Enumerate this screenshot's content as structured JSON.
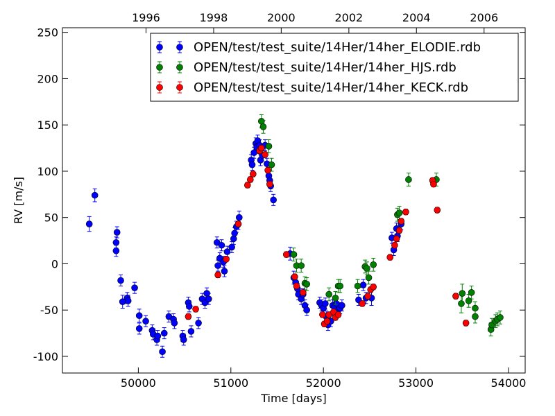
{
  "chart_data": {
    "type": "scatter",
    "title": "",
    "xlabel": "Time [days]",
    "ylabel": "RV [m/s]",
    "xlim": [
      49180,
      54180
    ],
    "ylim": [
      -118,
      255
    ],
    "x_ticks": [
      50000,
      51000,
      52000,
      53000,
      54000
    ],
    "y_ticks": [
      -100,
      -50,
      0,
      50,
      100,
      150,
      200,
      250
    ],
    "top_axis": {
      "ticks": [
        1996,
        1998,
        2000,
        2002,
        2004,
        2006
      ],
      "tick_positions_days": [
        50083,
        50814,
        51544,
        52275,
        53005,
        53736
      ]
    },
    "grid": false,
    "legend": {
      "position": "top-right"
    },
    "series": [
      {
        "name": "OPEN/test/test_suite/14Her/14her_ELODIE.rdb",
        "color": "#0000ff",
        "marker": "circle",
        "errorbars": true,
        "points": [
          [
            49470,
            43,
            8
          ],
          [
            49530,
            74,
            7
          ],
          [
            49760,
            14,
            6
          ],
          [
            49760,
            23,
            6
          ],
          [
            49770,
            34,
            6
          ],
          [
            49810,
            -18,
            6
          ],
          [
            49830,
            -41,
            7
          ],
          [
            49880,
            -37,
            6
          ],
          [
            49890,
            -40,
            6
          ],
          [
            49960,
            -26,
            6
          ],
          [
            50010,
            -56,
            7
          ],
          [
            50010,
            -70,
            6
          ],
          [
            50080,
            -62,
            6
          ],
          [
            50150,
            -72,
            6
          ],
          [
            50160,
            -76,
            6
          ],
          [
            50200,
            -82,
            6
          ],
          [
            50210,
            -78,
            6
          ],
          [
            50260,
            -95,
            6
          ],
          [
            50280,
            -75,
            6
          ],
          [
            50330,
            -57,
            6
          ],
          [
            50380,
            -60,
            6
          ],
          [
            50390,
            -64,
            6
          ],
          [
            50480,
            -78,
            6
          ],
          [
            50490,
            -82,
            6
          ],
          [
            50540,
            -42,
            6
          ],
          [
            50550,
            -46,
            6
          ],
          [
            50570,
            -73,
            6
          ],
          [
            50650,
            -64,
            6
          ],
          [
            50690,
            -38,
            6
          ],
          [
            50720,
            -42,
            6
          ],
          [
            50740,
            -32,
            6
          ],
          [
            50760,
            -38,
            6
          ],
          [
            50850,
            23,
            6
          ],
          [
            50860,
            -2,
            6
          ],
          [
            50880,
            6,
            6
          ],
          [
            50900,
            20,
            6
          ],
          [
            50920,
            2,
            6
          ],
          [
            50930,
            -8,
            6
          ],
          [
            50960,
            13,
            6
          ],
          [
            51010,
            18,
            6
          ],
          [
            51030,
            27,
            6
          ],
          [
            51040,
            33,
            6
          ],
          [
            51060,
            40,
            6
          ],
          [
            51080,
            43,
            6
          ],
          [
            51090,
            50,
            7
          ],
          [
            51220,
            112,
            6
          ],
          [
            51230,
            107,
            6
          ],
          [
            51250,
            120,
            6
          ],
          [
            51270,
            130,
            6
          ],
          [
            51280,
            126,
            6
          ],
          [
            51290,
            133,
            6
          ],
          [
            51310,
            128,
            6
          ],
          [
            51320,
            112,
            6
          ],
          [
            51340,
            117,
            6
          ],
          [
            51370,
            128,
            6
          ],
          [
            51390,
            108,
            6
          ],
          [
            51410,
            95,
            6
          ],
          [
            51420,
            90,
            6
          ],
          [
            51430,
            84,
            6
          ],
          [
            51460,
            69,
            6
          ],
          [
            51640,
            11,
            7
          ],
          [
            51680,
            -15,
            7
          ],
          [
            51700,
            -20,
            6
          ],
          [
            51720,
            -27,
            6
          ],
          [
            51730,
            -33,
            6
          ],
          [
            51760,
            -38,
            6
          ],
          [
            51780,
            -33,
            6
          ],
          [
            51800,
            -45,
            6
          ],
          [
            51820,
            -50,
            6
          ],
          [
            51960,
            -42,
            6
          ],
          [
            51980,
            -45,
            6
          ],
          [
            52000,
            -48,
            6
          ],
          [
            52020,
            -43,
            6
          ],
          [
            52030,
            -57,
            6
          ],
          [
            52050,
            -66,
            6
          ],
          [
            52080,
            -62,
            6
          ],
          [
            52100,
            -45,
            6
          ],
          [
            52120,
            -47,
            6
          ],
          [
            52140,
            -43,
            6
          ],
          [
            52160,
            -50,
            6
          ],
          [
            52180,
            -48,
            6
          ],
          [
            52200,
            -45,
            6
          ],
          [
            52380,
            -39,
            6
          ],
          [
            52430,
            -23,
            6
          ],
          [
            52460,
            -37,
            6
          ],
          [
            52520,
            -37,
            8
          ],
          [
            52740,
            28,
            6
          ],
          [
            52760,
            15,
            6
          ],
          [
            52790,
            38,
            6
          ],
          [
            52800,
            30,
            6
          ],
          [
            52840,
            43,
            6
          ]
        ]
      },
      {
        "name": "OPEN/test/test_suite/14Her/14her_HJS.rdb",
        "color": "#008000",
        "marker": "circle",
        "errorbars": true,
        "points": [
          [
            51330,
            154,
            7
          ],
          [
            51350,
            148,
            7
          ],
          [
            51410,
            127,
            7
          ],
          [
            51440,
            107,
            7
          ],
          [
            51680,
            10,
            7
          ],
          [
            51710,
            -2,
            7
          ],
          [
            51760,
            -2,
            7
          ],
          [
            51800,
            -21,
            7
          ],
          [
            51820,
            -22,
            7
          ],
          [
            52060,
            -33,
            7
          ],
          [
            52130,
            -37,
            7
          ],
          [
            52160,
            -24,
            7
          ],
          [
            52180,
            -24,
            7
          ],
          [
            52370,
            -24,
            7
          ],
          [
            52450,
            -3,
            7
          ],
          [
            52470,
            -5,
            7
          ],
          [
            52490,
            -15,
            7
          ],
          [
            52540,
            -1,
            7
          ],
          [
            52800,
            53,
            7
          ],
          [
            52820,
            55,
            7
          ],
          [
            52920,
            91,
            7
          ],
          [
            53220,
            91,
            7
          ],
          [
            53490,
            -43,
            10
          ],
          [
            53500,
            -32,
            10
          ],
          [
            53570,
            -40,
            7
          ],
          [
            53600,
            -31,
            7
          ],
          [
            53640,
            -48,
            7
          ],
          [
            53640,
            -57,
            7
          ],
          [
            53810,
            -71,
            7
          ],
          [
            53820,
            -66,
            7
          ],
          [
            53860,
            -62,
            7
          ],
          [
            53880,
            -60,
            7
          ],
          [
            53910,
            -58,
            7
          ]
        ]
      },
      {
        "name": "OPEN/test/test_suite/14Her/14her_KECK.rdb",
        "color": "#ff0000",
        "marker": "circle",
        "errorbars": true,
        "points": [
          [
            50540,
            -57,
            3
          ],
          [
            50620,
            -49,
            3
          ],
          [
            50860,
            -12,
            3
          ],
          [
            50950,
            5,
            3
          ],
          [
            51080,
            43,
            3
          ],
          [
            51180,
            85,
            3
          ],
          [
            51210,
            91,
            3
          ],
          [
            51240,
            97,
            3
          ],
          [
            51310,
            122,
            3
          ],
          [
            51330,
            125,
            3
          ],
          [
            51370,
            118,
            3
          ],
          [
            51400,
            101,
            3
          ],
          [
            51420,
            86,
            3
          ],
          [
            51600,
            10,
            3
          ],
          [
            51690,
            -14,
            3
          ],
          [
            51710,
            -24,
            3
          ],
          [
            51780,
            -31,
            3
          ],
          [
            51990,
            -55,
            3
          ],
          [
            52010,
            -65,
            3
          ],
          [
            52040,
            -62,
            3
          ],
          [
            52060,
            -55,
            3
          ],
          [
            52110,
            -52,
            3
          ],
          [
            52130,
            -58,
            3
          ],
          [
            52160,
            -55,
            3
          ],
          [
            52420,
            -43,
            3
          ],
          [
            52480,
            -35,
            3
          ],
          [
            52510,
            -28,
            3
          ],
          [
            52540,
            -25,
            3
          ],
          [
            52720,
            7,
            3
          ],
          [
            52770,
            20,
            3
          ],
          [
            52790,
            27,
            3
          ],
          [
            52820,
            36,
            3
          ],
          [
            52840,
            46,
            3
          ],
          [
            52890,
            56,
            3
          ],
          [
            53180,
            90,
            3
          ],
          [
            53190,
            86,
            3
          ],
          [
            53230,
            58,
            3
          ],
          [
            53430,
            -35,
            3
          ],
          [
            53540,
            -64,
            3
          ]
        ]
      }
    ]
  }
}
